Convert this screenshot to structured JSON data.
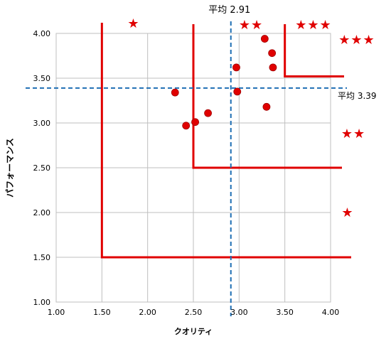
{
  "chart_data": {
    "type": "scatter",
    "xlabel": "クオリティ",
    "ylabel": "パフォーマンス",
    "xlim": [
      1.0,
      4.0
    ],
    "ylim": [
      1.0,
      4.0
    ],
    "x_ticks": [
      "1.00",
      "1.50",
      "2.00",
      "2.50",
      "3.00",
      "3.50",
      "4.00"
    ],
    "y_ticks": [
      "1.00",
      "1.50",
      "2.00",
      "2.50",
      "3.00",
      "3.50",
      "4.00"
    ],
    "grid": true,
    "points": [
      {
        "x": 2.3,
        "y": 3.34
      },
      {
        "x": 2.42,
        "y": 2.97
      },
      {
        "x": 2.52,
        "y": 3.01
      },
      {
        "x": 2.66,
        "y": 3.11
      },
      {
        "x": 2.97,
        "y": 3.62
      },
      {
        "x": 2.98,
        "y": 3.35
      },
      {
        "x": 3.28,
        "y": 3.94
      },
      {
        "x": 3.3,
        "y": 3.18
      },
      {
        "x": 3.36,
        "y": 3.78
      },
      {
        "x": 3.37,
        "y": 3.62
      }
    ],
    "average_lines": [
      {
        "axis": "x",
        "value": 2.91,
        "label": "平均 2.91"
      },
      {
        "axis": "y",
        "value": 3.39,
        "label": "平均 3.39"
      }
    ],
    "zones": [
      {
        "x_from": 1.5,
        "y_from": 1.5,
        "stars": "★"
      },
      {
        "x_from": 2.5,
        "y_from": 2.5,
        "stars": "★★"
      },
      {
        "x_from": 3.5,
        "y_from": 3.52,
        "stars": "★★★"
      }
    ],
    "star_labels": [
      "★",
      "★★",
      "★★★",
      "★★★",
      "★★",
      "★"
    ],
    "colors": {
      "points": "#e00000",
      "zones": "#e00000",
      "average": "#1f6fb4",
      "grid": "#bfbfbf"
    }
  }
}
